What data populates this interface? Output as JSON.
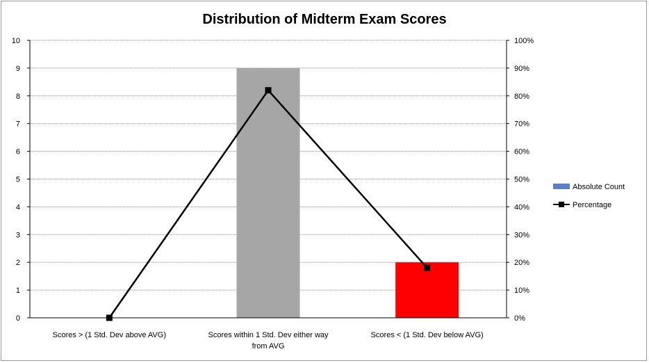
{
  "chart_data": {
    "type": "bar",
    "title": "Distribution of Midterm Exam Scores",
    "categories": [
      [
        "Scores > (1 Std. Dev above AVG)"
      ],
      [
        "Scores within 1 Std. Dev either way",
        "from AVG"
      ],
      [
        "Scores < (1 Std. Dev below AVG)"
      ]
    ],
    "series": [
      {
        "name": "Absolute Count",
        "type": "bar",
        "axis": "left",
        "values": [
          0,
          9,
          2
        ],
        "colors": [
          "#a6a6a6",
          "#a6a6a6",
          "#ff0000"
        ]
      },
      {
        "name": "Percentage",
        "type": "line",
        "axis": "right",
        "values": [
          0,
          0.82,
          0.18
        ],
        "color": "#000000"
      }
    ],
    "y_left": {
      "ylim": [
        0,
        10
      ],
      "ticks": [
        "0",
        "1",
        "2",
        "3",
        "4",
        "5",
        "6",
        "7",
        "8",
        "9",
        "10"
      ]
    },
    "y_right": {
      "ylim": [
        0,
        1
      ],
      "ticks": [
        "0%",
        "10%",
        "20%",
        "30%",
        "40%",
        "50%",
        "60%",
        "70%",
        "80%",
        "90%",
        "100%"
      ]
    },
    "legend_position": "right",
    "grid": true
  }
}
